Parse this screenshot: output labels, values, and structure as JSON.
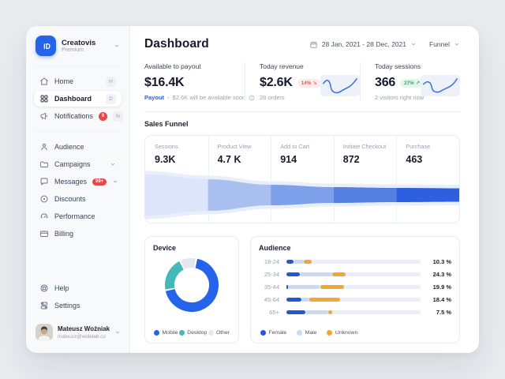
{
  "sidebar": {
    "logo": {
      "name": "Creatovis",
      "plan": "Premium"
    },
    "nav_primary": [
      {
        "id": "home",
        "label": "Home",
        "icon": "home-icon",
        "shortcut": "H"
      },
      {
        "id": "dashboard",
        "label": "Dashboard",
        "icon": "dashboard-icon",
        "shortcut": "D",
        "active": true
      },
      {
        "id": "notifications",
        "label": "Notifications",
        "icon": "megaphone-icon",
        "shortcut": "N",
        "badge": "9"
      }
    ],
    "nav_secondary": [
      {
        "id": "audience",
        "label": "Audience",
        "icon": "user-icon"
      },
      {
        "id": "campaigns",
        "label": "Campaigns",
        "icon": "folder-icon",
        "expandable": true
      },
      {
        "id": "messages",
        "label": "Messages",
        "icon": "chat-icon",
        "badge": "99+",
        "expandable": true
      },
      {
        "id": "discounts",
        "label": "Discounts",
        "icon": "discount-icon"
      },
      {
        "id": "performance",
        "label": "Performance",
        "icon": "gauge-icon"
      },
      {
        "id": "billing",
        "label": "Billing",
        "icon": "billing-icon"
      }
    ],
    "nav_bottom": [
      {
        "id": "help",
        "label": "Help",
        "icon": "help-icon"
      },
      {
        "id": "settings",
        "label": "Settings",
        "icon": "settings-icon"
      }
    ],
    "user": {
      "name": "Mateusz Woźniak",
      "email": "mateusz@widelab.co"
    }
  },
  "header": {
    "title": "Dashboard",
    "date_range": "28 Jan, 2021 - 28 Dec, 2021",
    "view_label": "Funnel"
  },
  "stats": [
    {
      "label": "Available to payout",
      "value": "$16.4K",
      "link_label": "Payout",
      "note": "$2.6K will be available soon"
    },
    {
      "label": "Today revenue",
      "value": "$2.6K",
      "badge": {
        "text": "14%",
        "arrow": "↘"
      },
      "note": "28 orders"
    },
    {
      "label": "Today sessions",
      "value": "366",
      "badge": {
        "text": "27%",
        "arrow": "↗"
      },
      "note": "2 visitors right now"
    }
  ],
  "chart_data": [
    {
      "type": "area",
      "title": "Sales Funnel",
      "stages": [
        {
          "label": "Sessions",
          "value": "9.3K"
        },
        {
          "label": "Product View",
          "value": "4.7 K"
        },
        {
          "label": "Add to Cart",
          "value": "914"
        },
        {
          "label": "Initiate Checkout",
          "value": "872"
        },
        {
          "label": "Purchase",
          "value": "463"
        }
      ],
      "colors": [
        "#dce5f9",
        "#a9bff0",
        "#7e9fe9",
        "#5580e2",
        "#2d5fe0"
      ],
      "halo_color": "#e9eefb"
    },
    {
      "type": "pie",
      "title": "Device",
      "slices": [
        {
          "label": "Mobile",
          "value": 69,
          "color": "#2563eb"
        },
        {
          "label": "Desktop",
          "value": 21,
          "color": "#45b8b8"
        },
        {
          "label": "Other",
          "value": 10,
          "color": "#e3e8ee"
        }
      ],
      "legend_position": "bottom"
    },
    {
      "type": "bar",
      "title": "Audience",
      "orientation": "horizontal",
      "categories": [
        "18-24",
        "25-34",
        "35-44",
        "45-64",
        "65+"
      ],
      "totals": [
        "10.3 %",
        "24.3 %",
        "19.9 %",
        "18.4 %",
        "7.5 %"
      ],
      "series": [
        {
          "name": "Female",
          "color": "#2456d9",
          "values": [
            5,
            10,
            1,
            11,
            14
          ]
        },
        {
          "name": "Male",
          "color": "#ccd9f2",
          "values": [
            8,
            24,
            24,
            6,
            17
          ]
        },
        {
          "name": "Unknown",
          "color": "#f2a53a",
          "values": [
            6,
            10,
            18,
            23,
            3
          ]
        }
      ],
      "xlim": [
        0,
        100
      ],
      "legend_position": "bottom"
    }
  ]
}
